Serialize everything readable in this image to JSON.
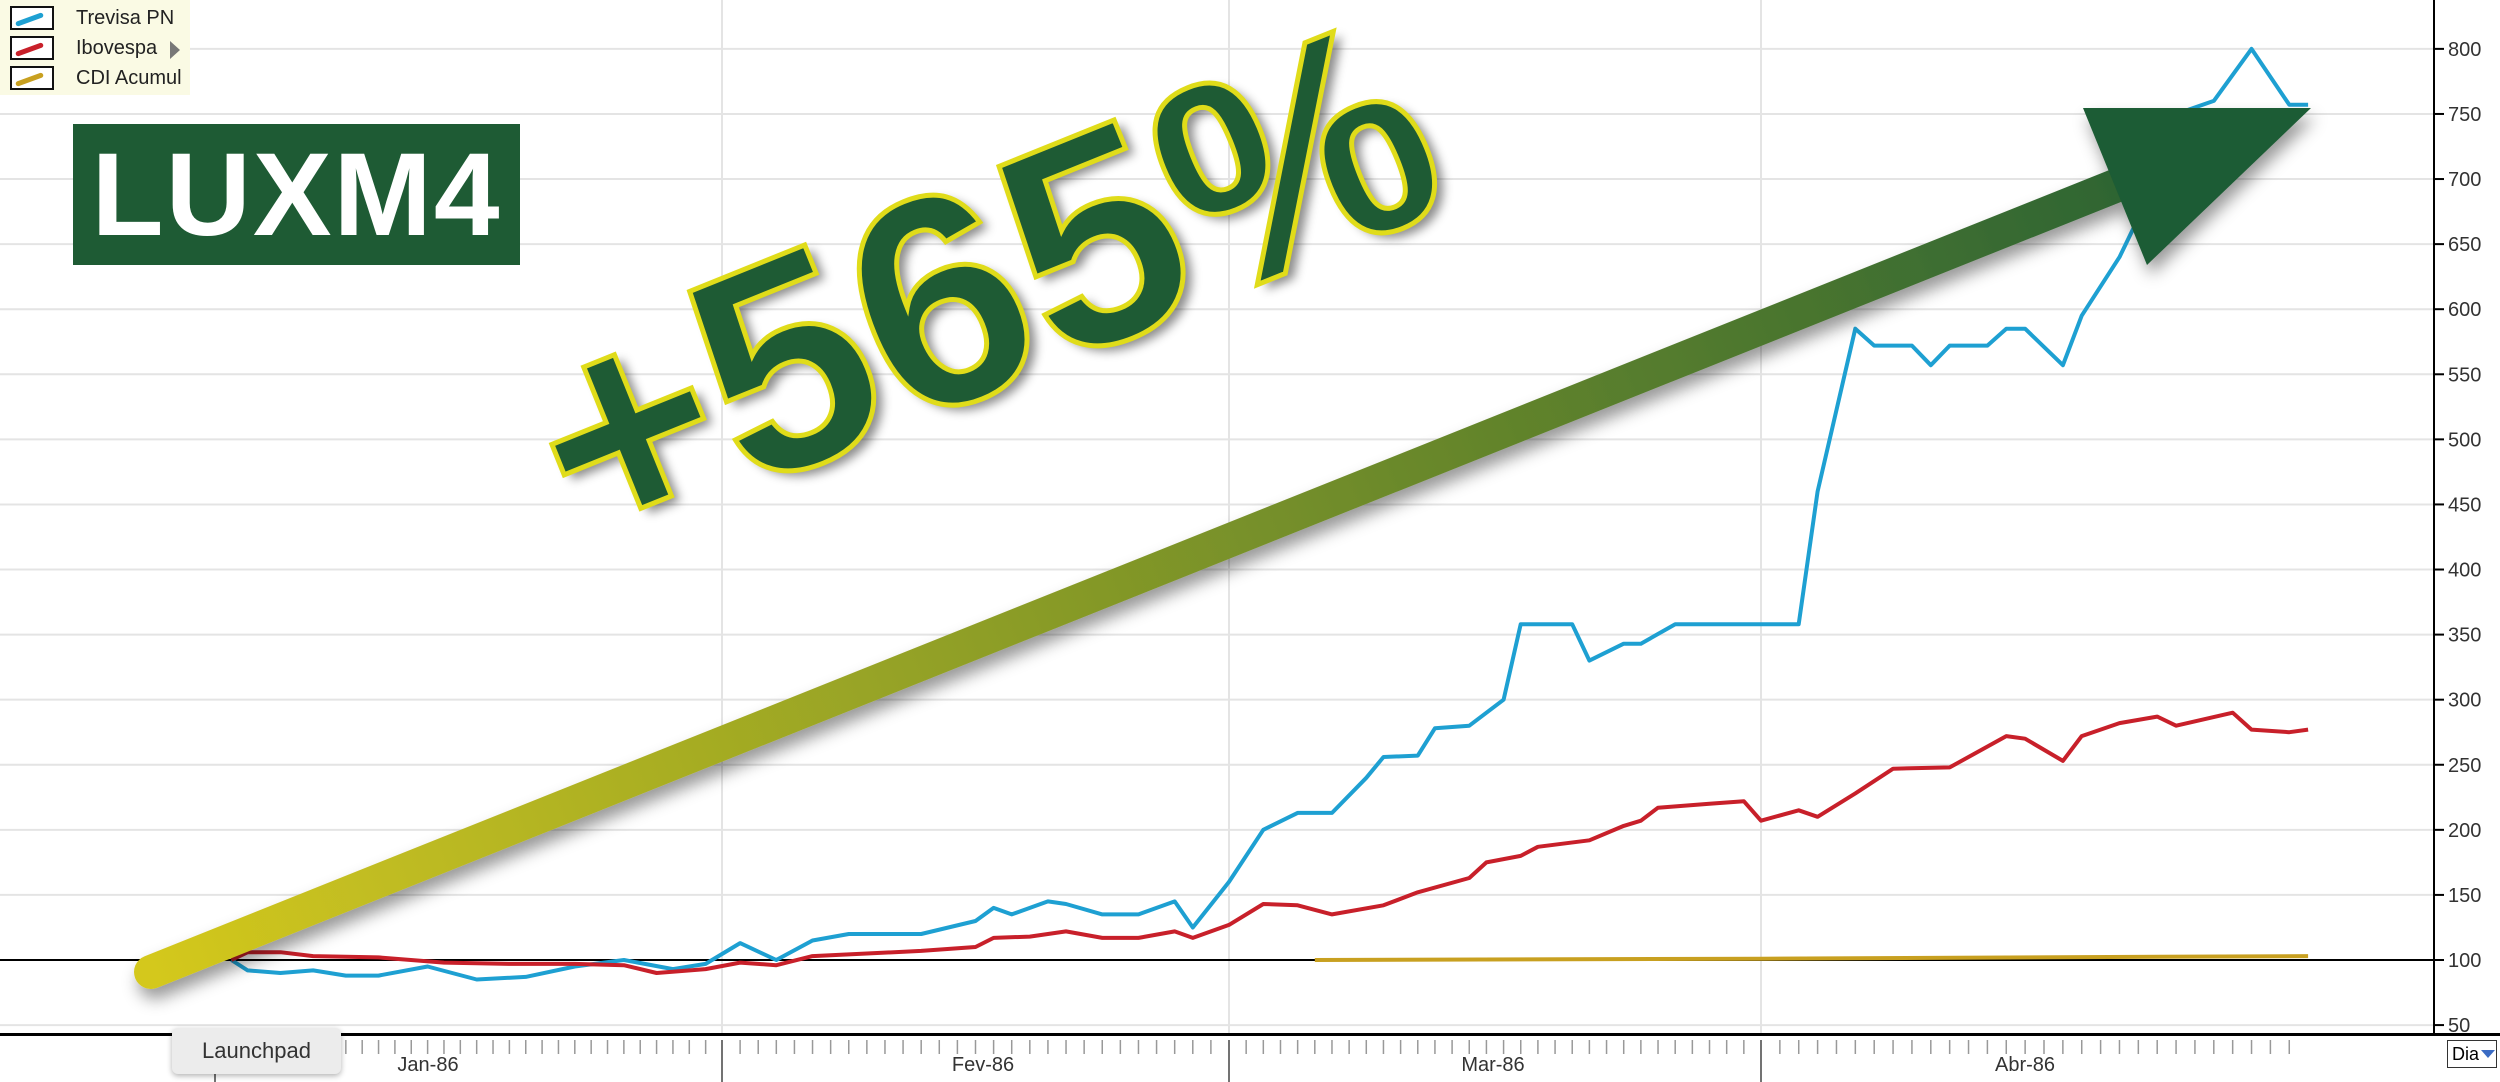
{
  "chart_data": {
    "type": "line",
    "title": "",
    "xlabel": "",
    "ylabel": "",
    "ylim": [
      50,
      830
    ],
    "y_ticks": [
      "50",
      "100",
      "150",
      "200",
      "250",
      "300",
      "350",
      "400",
      "450",
      "500",
      "550",
      "600",
      "650",
      "700",
      "750",
      "800"
    ],
    "x_tick_labels": [
      "Jan-86",
      "Fev-86",
      "Mar-86",
      "Abr-86"
    ],
    "grid": true,
    "reference_line": 100,
    "legend_position": "top-left",
    "series": [
      {
        "name": "Trevisa PN",
        "color": "#1ea0d2",
        "points": [
          [
            "1986-01-02",
            100
          ],
          [
            "1986-01-03",
            92
          ],
          [
            "1986-01-05",
            90
          ],
          [
            "1986-01-07",
            92
          ],
          [
            "1986-01-09",
            88
          ],
          [
            "1986-01-11",
            88
          ],
          [
            "1986-01-14",
            95
          ],
          [
            "1986-01-17",
            85
          ],
          [
            "1986-01-20",
            87
          ],
          [
            "1986-01-23",
            95
          ],
          [
            "1986-01-26",
            100
          ],
          [
            "1986-01-29",
            93
          ],
          [
            "1986-01-31",
            97
          ],
          [
            "1986-02-02",
            113
          ],
          [
            "1986-02-04",
            100
          ],
          [
            "1986-02-06",
            115
          ],
          [
            "1986-02-08",
            120
          ],
          [
            "1986-02-12",
            120
          ],
          [
            "1986-02-15",
            130
          ],
          [
            "1986-02-16",
            140
          ],
          [
            "1986-02-17",
            135
          ],
          [
            "1986-02-19",
            145
          ],
          [
            "1986-02-20",
            143
          ],
          [
            "1986-02-22",
            135
          ],
          [
            "1986-02-24",
            135
          ],
          [
            "1986-02-26",
            145
          ],
          [
            "1986-02-27",
            125
          ],
          [
            "1986-03-01",
            160
          ],
          [
            "1986-03-03",
            200
          ],
          [
            "1986-03-05",
            213
          ],
          [
            "1986-03-07",
            213
          ],
          [
            "1986-03-09",
            240
          ],
          [
            "1986-03-10",
            256
          ],
          [
            "1986-03-12",
            257
          ],
          [
            "1986-03-13",
            278
          ],
          [
            "1986-03-15",
            280
          ],
          [
            "1986-03-17",
            300
          ],
          [
            "1986-03-18",
            358
          ],
          [
            "1986-03-21",
            358
          ],
          [
            "1986-03-22",
            330
          ],
          [
            "1986-03-24",
            343
          ],
          [
            "1986-03-25",
            343
          ],
          [
            "1986-03-27",
            358
          ],
          [
            "1986-04-03",
            358
          ],
          [
            "1986-04-04",
            460
          ],
          [
            "1986-04-06",
            585
          ],
          [
            "1986-04-07",
            572
          ],
          [
            "1986-04-09",
            572
          ],
          [
            "1986-04-10",
            557
          ],
          [
            "1986-04-11",
            572
          ],
          [
            "1986-04-13",
            572
          ],
          [
            "1986-04-14",
            585
          ],
          [
            "1986-04-15",
            585
          ],
          [
            "1986-04-17",
            557
          ],
          [
            "1986-04-18",
            595
          ],
          [
            "1986-04-20",
            640
          ],
          [
            "1986-04-22",
            700
          ],
          [
            "1986-04-23",
            750
          ],
          [
            "1986-04-25",
            760
          ],
          [
            "1986-04-27",
            800
          ],
          [
            "1986-04-29",
            757
          ],
          [
            "1986-04-30",
            757
          ]
        ]
      },
      {
        "name": "Ibovespa",
        "color": "#c8202a",
        "points": [
          [
            "1986-01-02",
            100
          ],
          [
            "1986-01-03",
            106
          ],
          [
            "1986-01-05",
            106
          ],
          [
            "1986-01-07",
            103
          ],
          [
            "1986-01-11",
            102
          ],
          [
            "1986-01-15",
            98
          ],
          [
            "1986-01-19",
            97
          ],
          [
            "1986-01-23",
            97
          ],
          [
            "1986-01-26",
            96
          ],
          [
            "1986-01-28",
            90
          ],
          [
            "1986-01-31",
            93
          ],
          [
            "1986-02-02",
            98
          ],
          [
            "1986-02-04",
            96
          ],
          [
            "1986-02-06",
            103
          ],
          [
            "1986-02-09",
            105
          ],
          [
            "1986-02-12",
            107
          ],
          [
            "1986-02-15",
            110
          ],
          [
            "1986-02-16",
            117
          ],
          [
            "1986-02-18",
            118
          ],
          [
            "1986-02-20",
            122
          ],
          [
            "1986-02-22",
            117
          ],
          [
            "1986-02-24",
            117
          ],
          [
            "1986-02-26",
            122
          ],
          [
            "1986-02-27",
            117
          ],
          [
            "1986-03-01",
            127
          ],
          [
            "1986-03-03",
            143
          ],
          [
            "1986-03-05",
            142
          ],
          [
            "1986-03-07",
            135
          ],
          [
            "1986-03-10",
            142
          ],
          [
            "1986-03-12",
            152
          ],
          [
            "1986-03-15",
            163
          ],
          [
            "1986-03-16",
            175
          ],
          [
            "1986-03-18",
            180
          ],
          [
            "1986-03-19",
            187
          ],
          [
            "1986-03-22",
            192
          ],
          [
            "1986-03-24",
            203
          ],
          [
            "1986-03-25",
            207
          ],
          [
            "1986-03-26",
            217
          ],
          [
            "1986-03-29",
            220
          ],
          [
            "1986-03-31",
            222
          ],
          [
            "1986-04-01",
            207
          ],
          [
            "1986-04-03",
            215
          ],
          [
            "1986-04-04",
            210
          ],
          [
            "1986-04-06",
            228
          ],
          [
            "1986-04-08",
            247
          ],
          [
            "1986-04-11",
            248
          ],
          [
            "1986-04-14",
            272
          ],
          [
            "1986-04-15",
            270
          ],
          [
            "1986-04-17",
            253
          ],
          [
            "1986-04-18",
            272
          ],
          [
            "1986-04-20",
            282
          ],
          [
            "1986-04-22",
            287
          ],
          [
            "1986-04-23",
            280
          ],
          [
            "1986-04-26",
            290
          ],
          [
            "1986-04-27",
            277
          ],
          [
            "1986-04-29",
            275
          ],
          [
            "1986-04-30",
            277
          ]
        ]
      },
      {
        "name": "CDI Acumul",
        "color": "#c8a020",
        "points": [
          [
            "1986-03-06",
            100
          ],
          [
            "1986-04-01",
            101
          ],
          [
            "1986-04-30",
            103
          ]
        ]
      }
    ]
  },
  "overlay": {
    "ticker": "LUXM4",
    "gain_label": "+565%",
    "arrow_colors": [
      "#d4c81e",
      "#1e5b34"
    ]
  },
  "ui": {
    "tooltip": "Launchpad",
    "period_select": "Dia"
  }
}
